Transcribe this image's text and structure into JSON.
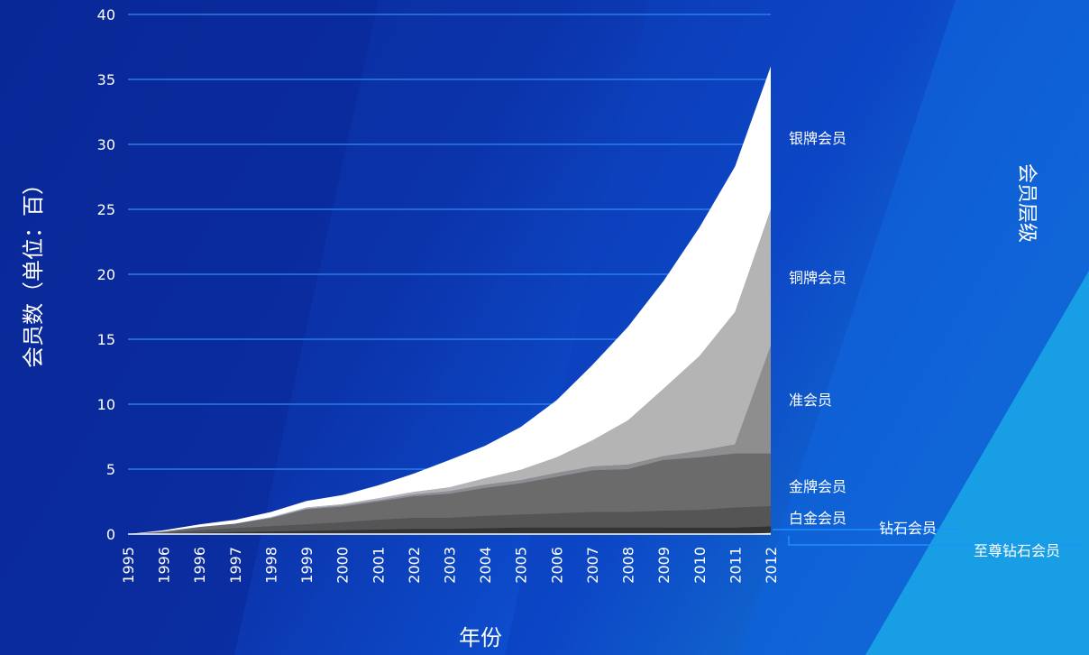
{
  "colors": {
    "background_dark": "#0a2a9c",
    "background_mid": "#0d4fd0",
    "background_light": "#1aa8e8",
    "gridline": "#2f8cf0",
    "text": "#ffffff"
  },
  "chart_data": {
    "type": "area",
    "stacked": true,
    "xlabel": "年份",
    "ylabel": "会员数（单位：百）",
    "legend_title": "会员层级",
    "legend_placement": "right",
    "grid": true,
    "ylim": [
      0,
      40
    ],
    "yticks": [
      "0",
      "5",
      "10",
      "15",
      "20",
      "25",
      "30",
      "35",
      "40"
    ],
    "x": [
      "1995",
      "1996",
      "1996",
      "1997",
      "1998",
      "1999",
      "2000",
      "2001",
      "2002",
      "2003",
      "2004",
      "2005",
      "2006",
      "2007",
      "2008",
      "2009",
      "2010",
      "2011",
      "2012"
    ],
    "series": [
      {
        "name": "至尊钻石会员",
        "color": "#e8e8e8",
        "values": [
          0,
          0,
          0,
          0,
          0,
          0,
          0,
          0,
          0,
          0,
          0,
          0,
          0,
          0,
          0,
          0,
          0,
          0,
          0.1
        ]
      },
      {
        "name": "钻石会员",
        "color": "#333333",
        "values": [
          0,
          0.05,
          0.1,
          0.15,
          0.2,
          0.25,
          0.3,
          0.35,
          0.4,
          0.4,
          0.45,
          0.5,
          0.5,
          0.5,
          0.5,
          0.5,
          0.5,
          0.5,
          0.5
        ]
      },
      {
        "name": "白金会员",
        "color": "#555555",
        "values": [
          0,
          0.05,
          0.2,
          0.3,
          0.4,
          0.5,
          0.6,
          0.75,
          0.85,
          0.85,
          0.95,
          1.0,
          1.1,
          1.2,
          1.2,
          1.3,
          1.35,
          1.55,
          1.55
        ]
      },
      {
        "name": "金牌会员",
        "color": "#6b6b6b",
        "values": [
          0,
          0.1,
          0.25,
          0.35,
          0.6,
          1.15,
          1.2,
          1.4,
          1.65,
          1.85,
          2.15,
          2.4,
          2.8,
          3.2,
          3.3,
          3.9,
          4.05,
          4.15,
          4.05
        ]
      },
      {
        "name": "准会员",
        "color": "#8e8e8e",
        "values": [
          0,
          0,
          0,
          0,
          0.05,
          0.05,
          0.1,
          0.1,
          0.15,
          0.2,
          0.25,
          0.25,
          0.3,
          0.3,
          0.35,
          0.3,
          0.5,
          0.7,
          8.3
        ]
      },
      {
        "name": "铜牌会员",
        "color": "#b4b4b4",
        "values": [
          0,
          0,
          0,
          0,
          0.05,
          0.1,
          0.1,
          0.15,
          0.2,
          0.3,
          0.5,
          0.8,
          1.2,
          2.0,
          3.4,
          5.2,
          7.3,
          10.2,
          10.5
        ]
      },
      {
        "name": "银牌会员",
        "color": "#ffffff",
        "values": [
          0,
          0.1,
          0.2,
          0.3,
          0.4,
          0.5,
          0.7,
          1.0,
          1.4,
          2.1,
          2.5,
          3.3,
          4.4,
          5.8,
          7.2,
          8.3,
          9.9,
          11.2,
          11.0
        ]
      }
    ]
  }
}
